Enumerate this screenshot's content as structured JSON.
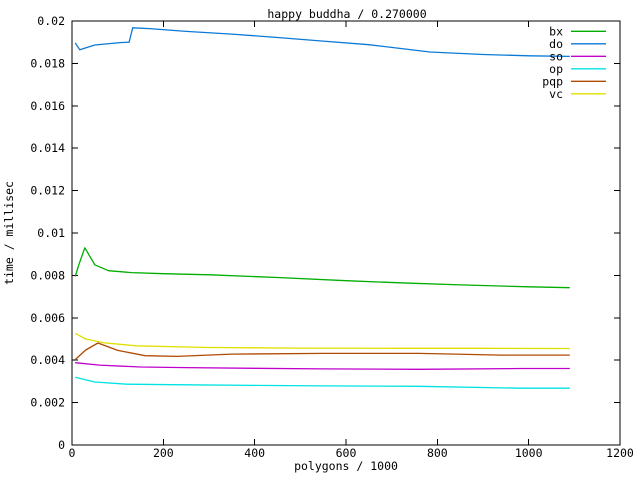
{
  "window": {
    "background": "#ffffff",
    "foreground": "#000000"
  },
  "chart_data": {
    "type": "line",
    "title": "happy buddha / 0.270000",
    "xlabel": "polygons / 1000",
    "ylabel": "time / millisec",
    "xlim": [
      0,
      1200
    ],
    "ylim": [
      0,
      0.02
    ],
    "grid": false,
    "legend_position": "top-right-inside",
    "axis_color": "#000000",
    "xticks": [
      {
        "v": 0,
        "label": "0"
      },
      {
        "v": 200,
        "label": "200"
      },
      {
        "v": 400,
        "label": "400"
      },
      {
        "v": 600,
        "label": "600"
      },
      {
        "v": 800,
        "label": "800"
      },
      {
        "v": 1000,
        "label": "1000"
      },
      {
        "v": 1200,
        "label": "1200"
      }
    ],
    "yticks": [
      {
        "v": 0,
        "label": "0"
      },
      {
        "v": 0.002,
        "label": "0.002"
      },
      {
        "v": 0.004,
        "label": "0.004"
      },
      {
        "v": 0.006,
        "label": "0.006"
      },
      {
        "v": 0.008,
        "label": "0.008"
      },
      {
        "v": 0.01,
        "label": "0.01"
      },
      {
        "v": 0.012,
        "label": "0.012"
      },
      {
        "v": 0.014,
        "label": "0.014"
      },
      {
        "v": 0.016,
        "label": "0.016"
      },
      {
        "v": 0.018,
        "label": "0.018"
      },
      {
        "v": 0.02,
        "label": "0.02"
      }
    ],
    "series": [
      {
        "name": "bx",
        "color": "#00ad00",
        "points": [
          [
            7,
            0.00795
          ],
          [
            15,
            0.0085
          ],
          [
            28,
            0.0093
          ],
          [
            50,
            0.0085
          ],
          [
            80,
            0.00822
          ],
          [
            130,
            0.00813
          ],
          [
            200,
            0.00808
          ],
          [
            302,
            0.00803
          ],
          [
            450,
            0.0079
          ],
          [
            600,
            0.00775
          ],
          [
            718,
            0.00765
          ],
          [
            850,
            0.00755
          ],
          [
            1000,
            0.00746
          ],
          [
            1090,
            0.00742
          ]
        ]
      },
      {
        "name": "do",
        "color": "#0b7ad6",
        "points": [
          [
            7,
            0.01897
          ],
          [
            17,
            0.01864
          ],
          [
            50,
            0.01887
          ],
          [
            105,
            0.01898
          ],
          [
            125,
            0.019
          ],
          [
            133,
            0.01968
          ],
          [
            170,
            0.01964
          ],
          [
            250,
            0.01951
          ],
          [
            350,
            0.01938
          ],
          [
            450,
            0.01922
          ],
          [
            550,
            0.01905
          ],
          [
            650,
            0.01888
          ],
          [
            784,
            0.01854
          ],
          [
            900,
            0.01842
          ],
          [
            1000,
            0.01836
          ],
          [
            1090,
            0.01833
          ]
        ]
      },
      {
        "name": "so",
        "color": "#c000cc",
        "points": [
          [
            7,
            0.00388
          ],
          [
            60,
            0.00377
          ],
          [
            150,
            0.00368
          ],
          [
            250,
            0.00365
          ],
          [
            400,
            0.00362
          ],
          [
            550,
            0.00359
          ],
          [
            760,
            0.00357
          ],
          [
            985,
            0.00361
          ],
          [
            1090,
            0.00361
          ]
        ]
      },
      {
        "name": "op",
        "color": "#00e2e2",
        "points": [
          [
            7,
            0.0032
          ],
          [
            50,
            0.00297
          ],
          [
            120,
            0.00287
          ],
          [
            250,
            0.00284
          ],
          [
            400,
            0.00281
          ],
          [
            550,
            0.00279
          ],
          [
            760,
            0.00277
          ],
          [
            985,
            0.00268
          ],
          [
            1090,
            0.00268
          ]
        ]
      },
      {
        "name": "pqp",
        "color": "#b04a00",
        "points": [
          [
            7,
            0.00403
          ],
          [
            30,
            0.00448
          ],
          [
            57,
            0.00481
          ],
          [
            100,
            0.00446
          ],
          [
            160,
            0.00421
          ],
          [
            230,
            0.00418
          ],
          [
            350,
            0.00429
          ],
          [
            550,
            0.00432
          ],
          [
            760,
            0.00432
          ],
          [
            941,
            0.00424
          ],
          [
            1090,
            0.00424
          ]
        ]
      },
      {
        "name": "vc",
        "color": "#e0e000",
        "points": [
          [
            7,
            0.00527
          ],
          [
            30,
            0.005
          ],
          [
            70,
            0.00482
          ],
          [
            140,
            0.00468
          ],
          [
            300,
            0.0046
          ],
          [
            500,
            0.00457
          ],
          [
            718,
            0.00456
          ],
          [
            900,
            0.00456
          ],
          [
            1090,
            0.00455
          ]
        ]
      }
    ]
  }
}
